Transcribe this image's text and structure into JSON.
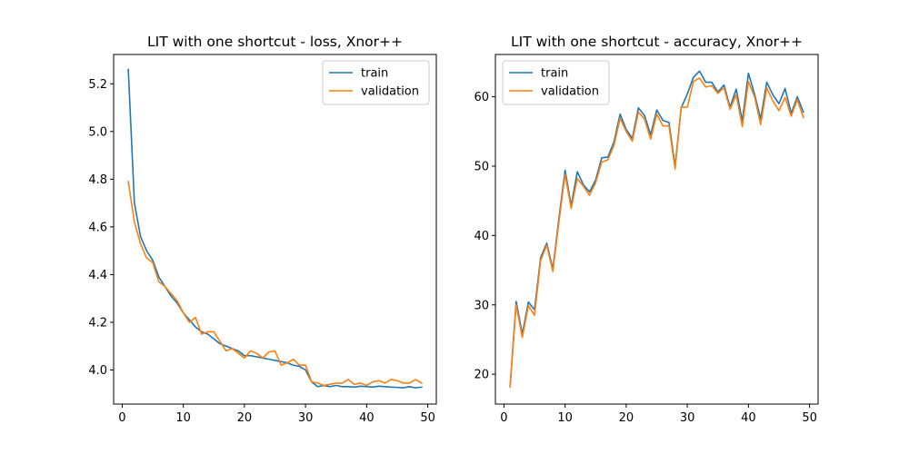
{
  "chart_data": [
    {
      "type": "line",
      "title": "LIT with one shortcut - loss, Xnor++",
      "xlabel": "",
      "ylabel": "",
      "xlim": [
        -1.4,
        51.4
      ],
      "ylim": [
        3.857,
        5.323
      ],
      "xticks": [
        0,
        10,
        20,
        30,
        40,
        50
      ],
      "yticks": [
        4.0,
        4.2,
        4.4,
        4.6,
        4.8,
        5.0,
        5.2
      ],
      "ytick_labels": [
        "4.0",
        "4.2",
        "4.4",
        "4.6",
        "4.8",
        "5.0",
        "5.2"
      ],
      "legend": "top-right",
      "grid": false,
      "x": [
        1,
        2,
        3,
        4,
        5,
        6,
        7,
        8,
        9,
        10,
        11,
        12,
        13,
        14,
        15,
        16,
        17,
        18,
        19,
        20,
        21,
        22,
        23,
        24,
        25,
        26,
        27,
        28,
        29,
        30,
        31,
        32,
        33,
        34,
        35,
        36,
        37,
        38,
        39,
        40,
        41,
        42,
        43,
        44,
        45,
        46,
        47,
        48,
        49
      ],
      "series": [
        {
          "name": "train",
          "color": "#1f77b4",
          "values": [
            5.26,
            4.7,
            4.56,
            4.5,
            4.46,
            4.39,
            4.35,
            4.31,
            4.28,
            4.24,
            4.21,
            4.18,
            4.16,
            4.15,
            4.13,
            4.11,
            4.1,
            4.09,
            4.08,
            4.06,
            4.06,
            4.055,
            4.05,
            4.045,
            4.04,
            4.035,
            4.03,
            4.02,
            4.015,
            4.0,
            3.95,
            3.93,
            3.935,
            3.93,
            3.935,
            3.93,
            3.93,
            3.928,
            3.932,
            3.93,
            3.928,
            3.932,
            3.93,
            3.928,
            3.927,
            3.925,
            3.93,
            3.925,
            3.928
          ]
        },
        {
          "name": "validation",
          "color": "#ff7f0e",
          "values": [
            4.79,
            4.62,
            4.53,
            4.47,
            4.45,
            4.37,
            4.35,
            4.32,
            4.29,
            4.24,
            4.2,
            4.22,
            4.15,
            4.16,
            4.16,
            4.12,
            4.08,
            4.09,
            4.07,
            4.05,
            4.08,
            4.07,
            4.05,
            4.075,
            4.08,
            4.02,
            4.03,
            4.045,
            4.02,
            4.02,
            3.95,
            3.945,
            3.935,
            3.94,
            3.945,
            3.945,
            3.96,
            3.94,
            3.945,
            3.935,
            3.95,
            3.955,
            3.945,
            3.96,
            3.955,
            3.945,
            3.945,
            3.96,
            3.945
          ]
        }
      ]
    },
    {
      "type": "line",
      "title": "LIT with one shortcut - accuracy, Xnor++",
      "xlabel": "",
      "ylabel": "",
      "xlim": [
        -1.4,
        51.4
      ],
      "ylim": [
        15.7,
        66.1
      ],
      "xticks": [
        0,
        10,
        20,
        30,
        40,
        50
      ],
      "yticks": [
        20,
        30,
        40,
        50,
        60
      ],
      "ytick_labels": [
        "20",
        "30",
        "40",
        "50",
        "60"
      ],
      "legend": "top-left",
      "grid": false,
      "x": [
        1,
        2,
        3,
        4,
        5,
        6,
        7,
        8,
        9,
        10,
        11,
        12,
        13,
        14,
        15,
        16,
        17,
        18,
        19,
        20,
        21,
        22,
        23,
        24,
        25,
        26,
        27,
        28,
        29,
        30,
        31,
        32,
        33,
        34,
        35,
        36,
        37,
        38,
        39,
        40,
        41,
        42,
        43,
        44,
        45,
        46,
        47,
        48,
        49
      ],
      "series": [
        {
          "name": "train",
          "color": "#1f77b4",
          "values": [
            18.2,
            30.5,
            25.8,
            30.4,
            29.3,
            36.8,
            38.9,
            35.2,
            42.5,
            49.4,
            44.3,
            49.2,
            47.3,
            46.3,
            48.0,
            51.2,
            51.3,
            53.5,
            57.5,
            55.3,
            54.0,
            58.4,
            57.3,
            54.5,
            58.1,
            56.6,
            56.3,
            50.0,
            58.4,
            60.4,
            62.8,
            63.7,
            62.1,
            62.1,
            60.7,
            61.7,
            58.5,
            61.1,
            56.5,
            63.4,
            60.4,
            56.8,
            62.1,
            60.3,
            59.0,
            61.2,
            57.6,
            60.0,
            57.8
          ]
        },
        {
          "name": "validation",
          "color": "#ff7f0e",
          "values": [
            18.2,
            30.0,
            25.3,
            29.9,
            28.5,
            36.4,
            38.6,
            34.8,
            42.0,
            48.8,
            43.9,
            48.2,
            47.1,
            45.8,
            47.6,
            50.6,
            50.9,
            53.0,
            56.9,
            55.0,
            53.6,
            57.8,
            56.8,
            53.9,
            57.5,
            55.8,
            55.8,
            49.6,
            58.5,
            58.5,
            62.2,
            62.7,
            61.4,
            61.6,
            60.5,
            61.3,
            58.2,
            60.3,
            55.7,
            62.2,
            60.0,
            56.0,
            61.3,
            59.4,
            58.0,
            59.9,
            57.2,
            59.6,
            57.0
          ]
        }
      ]
    }
  ]
}
